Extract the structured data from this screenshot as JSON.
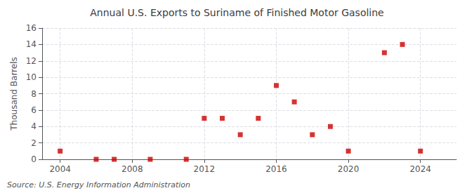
{
  "chart_data": {
    "type": "scatter",
    "title": "Annual U.S. Exports to Suriname of Finished Motor Gasoline",
    "ylabel": "Thousand Barrels",
    "annotations": [
      "Source: U.S. Energy Information Administration"
    ],
    "x": [
      2004,
      2006,
      2007,
      2009,
      2011,
      2012,
      2013,
      2014,
      2015,
      2016,
      2017,
      2018,
      2019,
      2020,
      2022,
      2023,
      2024
    ],
    "values": [
      1,
      0,
      0,
      0,
      0,
      5,
      5,
      3,
      5,
      9,
      7,
      3,
      4,
      1,
      13,
      14,
      1
    ],
    "color": "#cc0000",
    "marker": "square",
    "xlim": [
      2003,
      2026
    ],
    "ylim": [
      0,
      16
    ],
    "xticks": [
      2004,
      2008,
      2012,
      2016,
      2020,
      2024
    ],
    "yticks": [
      0,
      2,
      4,
      6,
      8,
      10,
      12,
      14,
      16
    ],
    "grid": true
  }
}
